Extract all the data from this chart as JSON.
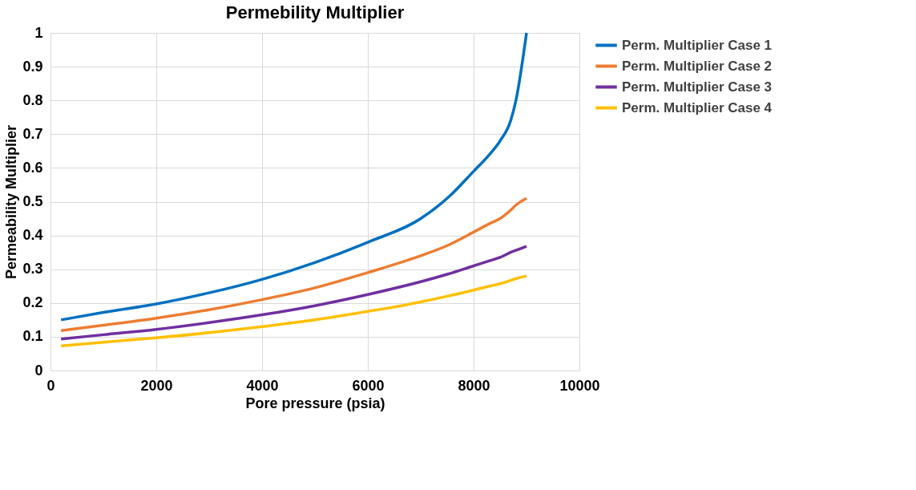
{
  "chart_data": {
    "type": "line",
    "title": "Permebility Multiplier",
    "xlabel": "Pore pressure (psia)",
    "ylabel": "Permeability Multiplier",
    "x": [
      200,
      1000,
      2000,
      3000,
      4000,
      5000,
      6000,
      7000,
      7500,
      8000,
      8300,
      8500,
      8700,
      8800,
      9000
    ],
    "series": [
      {
        "name": "Perm. Multiplier Case 1",
        "color": "#0070c0",
        "values": [
          0.15,
          0.172,
          0.197,
          0.23,
          0.27,
          0.32,
          0.38,
          0.45,
          0.51,
          0.59,
          0.64,
          0.68,
          0.74,
          0.8,
          1.0
        ]
      },
      {
        "name": "Perm. Multiplier Case 2",
        "color": "#ed7d31",
        "values": [
          0.118,
          0.134,
          0.155,
          0.18,
          0.21,
          0.245,
          0.29,
          0.34,
          0.37,
          0.41,
          0.435,
          0.45,
          0.475,
          0.49,
          0.51
        ]
      },
      {
        "name": "Perm. Multiplier Case 3",
        "color": "#7030a0",
        "values": [
          0.093,
          0.106,
          0.122,
          0.142,
          0.165,
          0.192,
          0.225,
          0.263,
          0.285,
          0.31,
          0.325,
          0.335,
          0.35,
          0.356,
          0.368
        ]
      },
      {
        "name": "Perm. Multiplier Case 4",
        "color": "#ffc000",
        "values": [
          0.073,
          0.084,
          0.097,
          0.112,
          0.13,
          0.15,
          0.175,
          0.203,
          0.22,
          0.238,
          0.25,
          0.257,
          0.267,
          0.272,
          0.28
        ]
      }
    ],
    "xlim": [
      0,
      10000
    ],
    "xticks": [
      0,
      2000,
      4000,
      6000,
      8000,
      10000
    ],
    "ylim": [
      0,
      1
    ],
    "yticks": [
      0,
      0.1,
      0.2,
      0.3,
      0.4,
      0.5,
      0.6,
      0.7,
      0.8,
      0.9,
      1
    ],
    "grid": true,
    "legend": "right",
    "marker": "none",
    "line_style": "solid"
  }
}
